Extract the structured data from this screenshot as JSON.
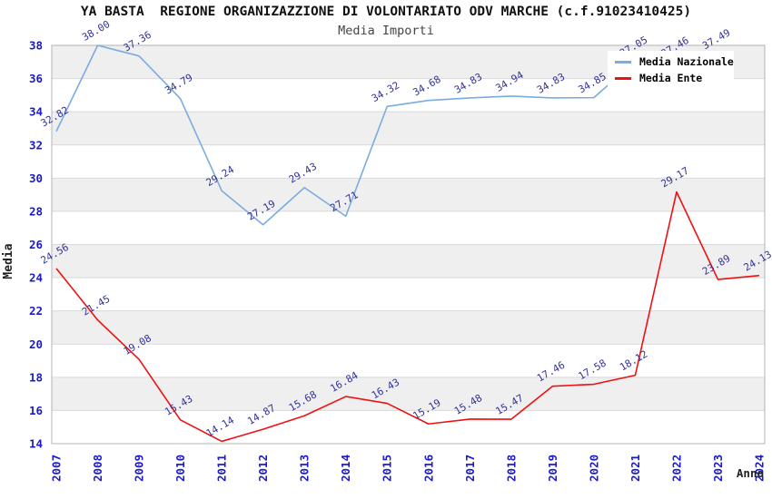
{
  "header": {
    "title": "YA BASTA  REGIONE ORGANIZAZZIONE DI VOLONTARIATO ODV MARCHE (c.f.91023410425)",
    "subtitle": "Media Importi"
  },
  "legend": [
    {
      "label": "Media Nazionale",
      "color": "#7aace0"
    },
    {
      "label": "Media Ente",
      "color": "#ee1111"
    }
  ],
  "axes": {
    "x_title": "Anno",
    "y_title": "Media",
    "y_ticks": [
      14,
      16,
      18,
      20,
      22,
      24,
      26,
      28,
      30,
      32,
      34,
      36,
      38
    ],
    "x_ticks": [
      "2007",
      "2008",
      "2009",
      "2010",
      "2011",
      "2012",
      "2013",
      "2014",
      "2015",
      "2016",
      "2017",
      "2018",
      "2019",
      "2020",
      "2021",
      "2022",
      "2023",
      "2024"
    ]
  },
  "colors": {
    "nazionale_line": "#7aace0",
    "ente_line": "#ee1111",
    "tick_label": "#1a1acc",
    "point_label": "#333399",
    "band_gray": "#efefef",
    "gridline": "#d9d9d9",
    "plot_border": "#b3b3b3",
    "axis_title": "#222222"
  },
  "chart_data": {
    "type": "line",
    "title": "YA BASTA  REGIONE ORGANIZAZZIONE DI VOLONTARIATO ODV MARCHE (c.f.91023410425)",
    "subtitle": "Media Importi",
    "xlabel": "Anno",
    "ylabel": "Media",
    "ylim": [
      14,
      38
    ],
    "grid": "horizontal-alternating-bands",
    "legend_position": "top-right-inside",
    "categories": [
      2007,
      2008,
      2009,
      2010,
      2011,
      2012,
      2013,
      2014,
      2015,
      2016,
      2017,
      2018,
      2019,
      2020,
      2021,
      2022,
      2023,
      2024
    ],
    "series": [
      {
        "name": "Media Nazionale",
        "color": "#7aace0",
        "values": [
          32.82,
          38.0,
          37.36,
          34.79,
          29.24,
          27.19,
          29.43,
          27.71,
          34.32,
          34.68,
          34.83,
          34.94,
          34.83,
          34.85,
          37.05,
          37.46,
          37.49,
          null
        ]
      },
      {
        "name": "Media Ente",
        "color": "#ee1111",
        "values": [
          24.56,
          21.45,
          19.08,
          15.43,
          14.14,
          14.87,
          15.68,
          16.84,
          16.43,
          15.19,
          15.48,
          15.47,
          17.46,
          17.58,
          18.12,
          29.17,
          23.89,
          24.13
        ]
      }
    ]
  }
}
